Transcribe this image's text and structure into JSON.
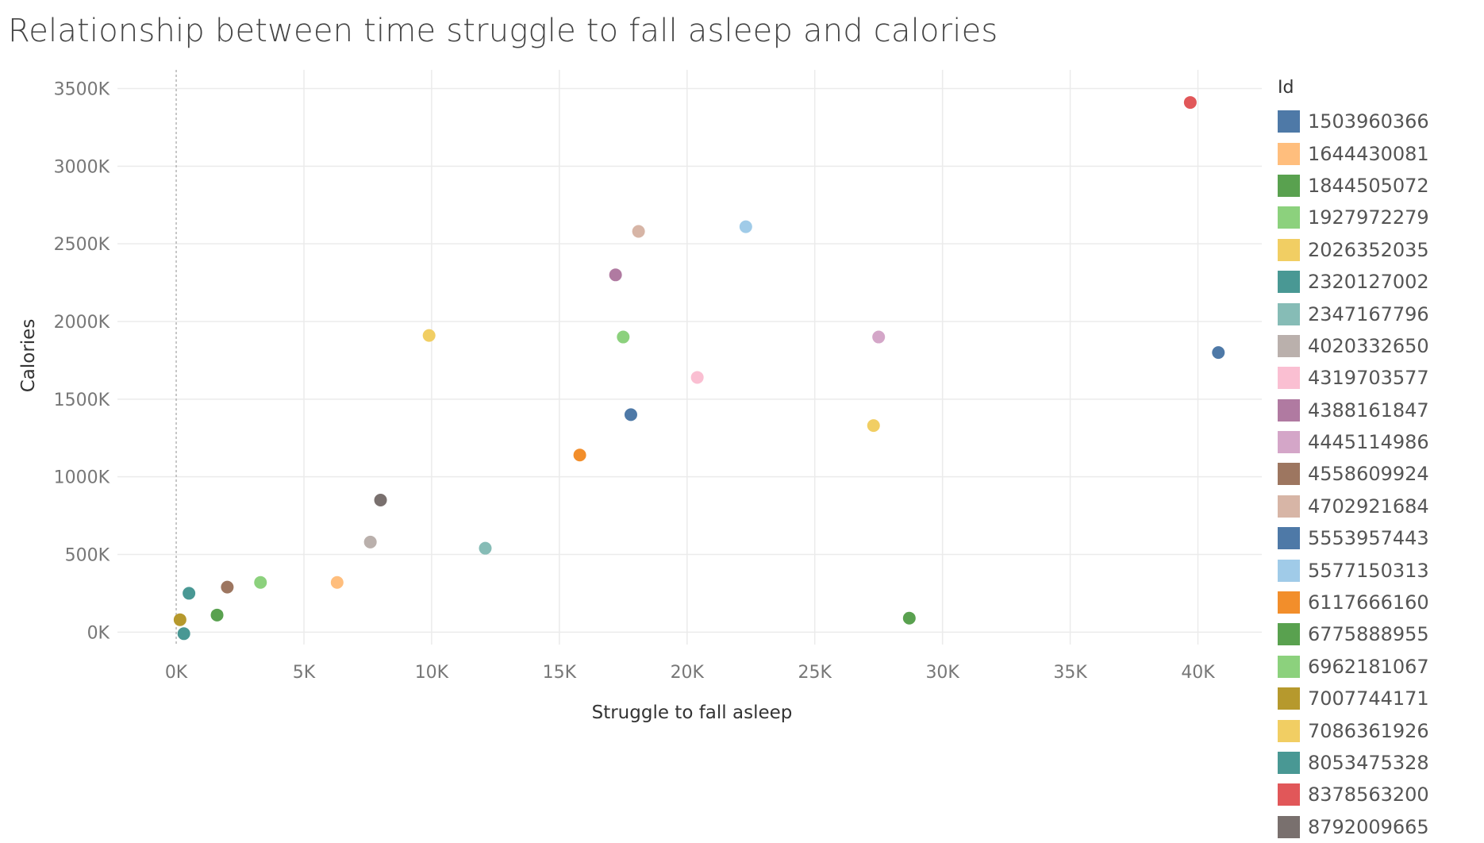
{
  "chart_data": {
    "type": "scatter",
    "title": "Relationship between time struggle to fall asleep and calories",
    "xlabel": "Struggle to fall asleep",
    "ylabel": "Calories",
    "xlim": [
      -2300,
      42500
    ],
    "ylim": [
      -80000,
      3620000
    ],
    "xticks": [
      0,
      5000,
      10000,
      15000,
      20000,
      25000,
      30000,
      35000,
      40000
    ],
    "xtick_labels": [
      "0K",
      "5K",
      "10K",
      "15K",
      "20K",
      "25K",
      "30K",
      "35K",
      "40K"
    ],
    "yticks": [
      0,
      500000,
      1000000,
      1500000,
      2000000,
      2500000,
      3000000,
      3500000
    ],
    "ytick_labels": [
      "0K",
      "500K",
      "1000K",
      "1500K",
      "2000K",
      "2500K",
      "3000K",
      "3500K"
    ],
    "grid": true,
    "legend_title": "Id",
    "legend_position": "right",
    "series": [
      {
        "name": "1503960366",
        "color": "#4e79a7",
        "points": [
          [
            17800,
            1400000
          ]
        ]
      },
      {
        "name": "1644430081",
        "color": "#ffbe7d",
        "points": [
          [
            6300,
            320000
          ]
        ]
      },
      {
        "name": "1844505072",
        "color": "#59a14f",
        "points": [
          [
            1600,
            110000
          ]
        ]
      },
      {
        "name": "1927972279",
        "color": "#8cd17d",
        "points": [
          [
            3300,
            320000
          ]
        ]
      },
      {
        "name": "2026352035",
        "color": "#f1ce63",
        "points": [
          [
            9900,
            1910000
          ]
        ]
      },
      {
        "name": "2320127002",
        "color": "#499894",
        "points": [
          [
            500,
            250000
          ]
        ]
      },
      {
        "name": "2347167796",
        "color": "#86bcb6",
        "points": [
          [
            12100,
            540000
          ]
        ]
      },
      {
        "name": "4020332650",
        "color": "#bab0ac",
        "points": [
          [
            7600,
            580000
          ]
        ]
      },
      {
        "name": "4319703577",
        "color": "#fabfd2",
        "points": [
          [
            20400,
            1640000
          ]
        ]
      },
      {
        "name": "4388161847",
        "color": "#b07aa1",
        "points": [
          [
            17200,
            2300000
          ]
        ]
      },
      {
        "name": "4445114986",
        "color": "#d4a6c8",
        "points": [
          [
            27500,
            1900000
          ]
        ]
      },
      {
        "name": "4558609924",
        "color": "#9d7660",
        "points": [
          [
            2000,
            290000
          ]
        ]
      },
      {
        "name": "4702921684",
        "color": "#d7b5a6",
        "points": [
          [
            18100,
            2580000
          ]
        ]
      },
      {
        "name": "5553957443",
        "color": "#4e79a7",
        "points": [
          [
            40800,
            1800000
          ]
        ]
      },
      {
        "name": "5577150313",
        "color": "#a0cbe8",
        "points": [
          [
            22300,
            2610000
          ]
        ]
      },
      {
        "name": "6117666160",
        "color": "#f28e2b",
        "points": [
          [
            15800,
            1140000
          ]
        ]
      },
      {
        "name": "6775888955",
        "color": "#59a14f",
        "points": [
          [
            28700,
            90000
          ]
        ]
      },
      {
        "name": "6962181067",
        "color": "#8cd17d",
        "points": [
          [
            17500,
            1900000
          ]
        ]
      },
      {
        "name": "7007744171",
        "color": "#b6992d",
        "points": [
          [
            150,
            80000
          ]
        ]
      },
      {
        "name": "7086361926",
        "color": "#f1ce63",
        "points": [
          [
            27300,
            1330000
          ]
        ]
      },
      {
        "name": "8053475328",
        "color": "#499894",
        "points": [
          [
            300,
            -10000
          ]
        ]
      },
      {
        "name": "8378563200",
        "color": "#e15759",
        "points": [
          [
            39700,
            3410000
          ]
        ]
      },
      {
        "name": "8792009665",
        "color": "#79706e",
        "points": [
          [
            8000,
            850000
          ]
        ]
      }
    ]
  }
}
